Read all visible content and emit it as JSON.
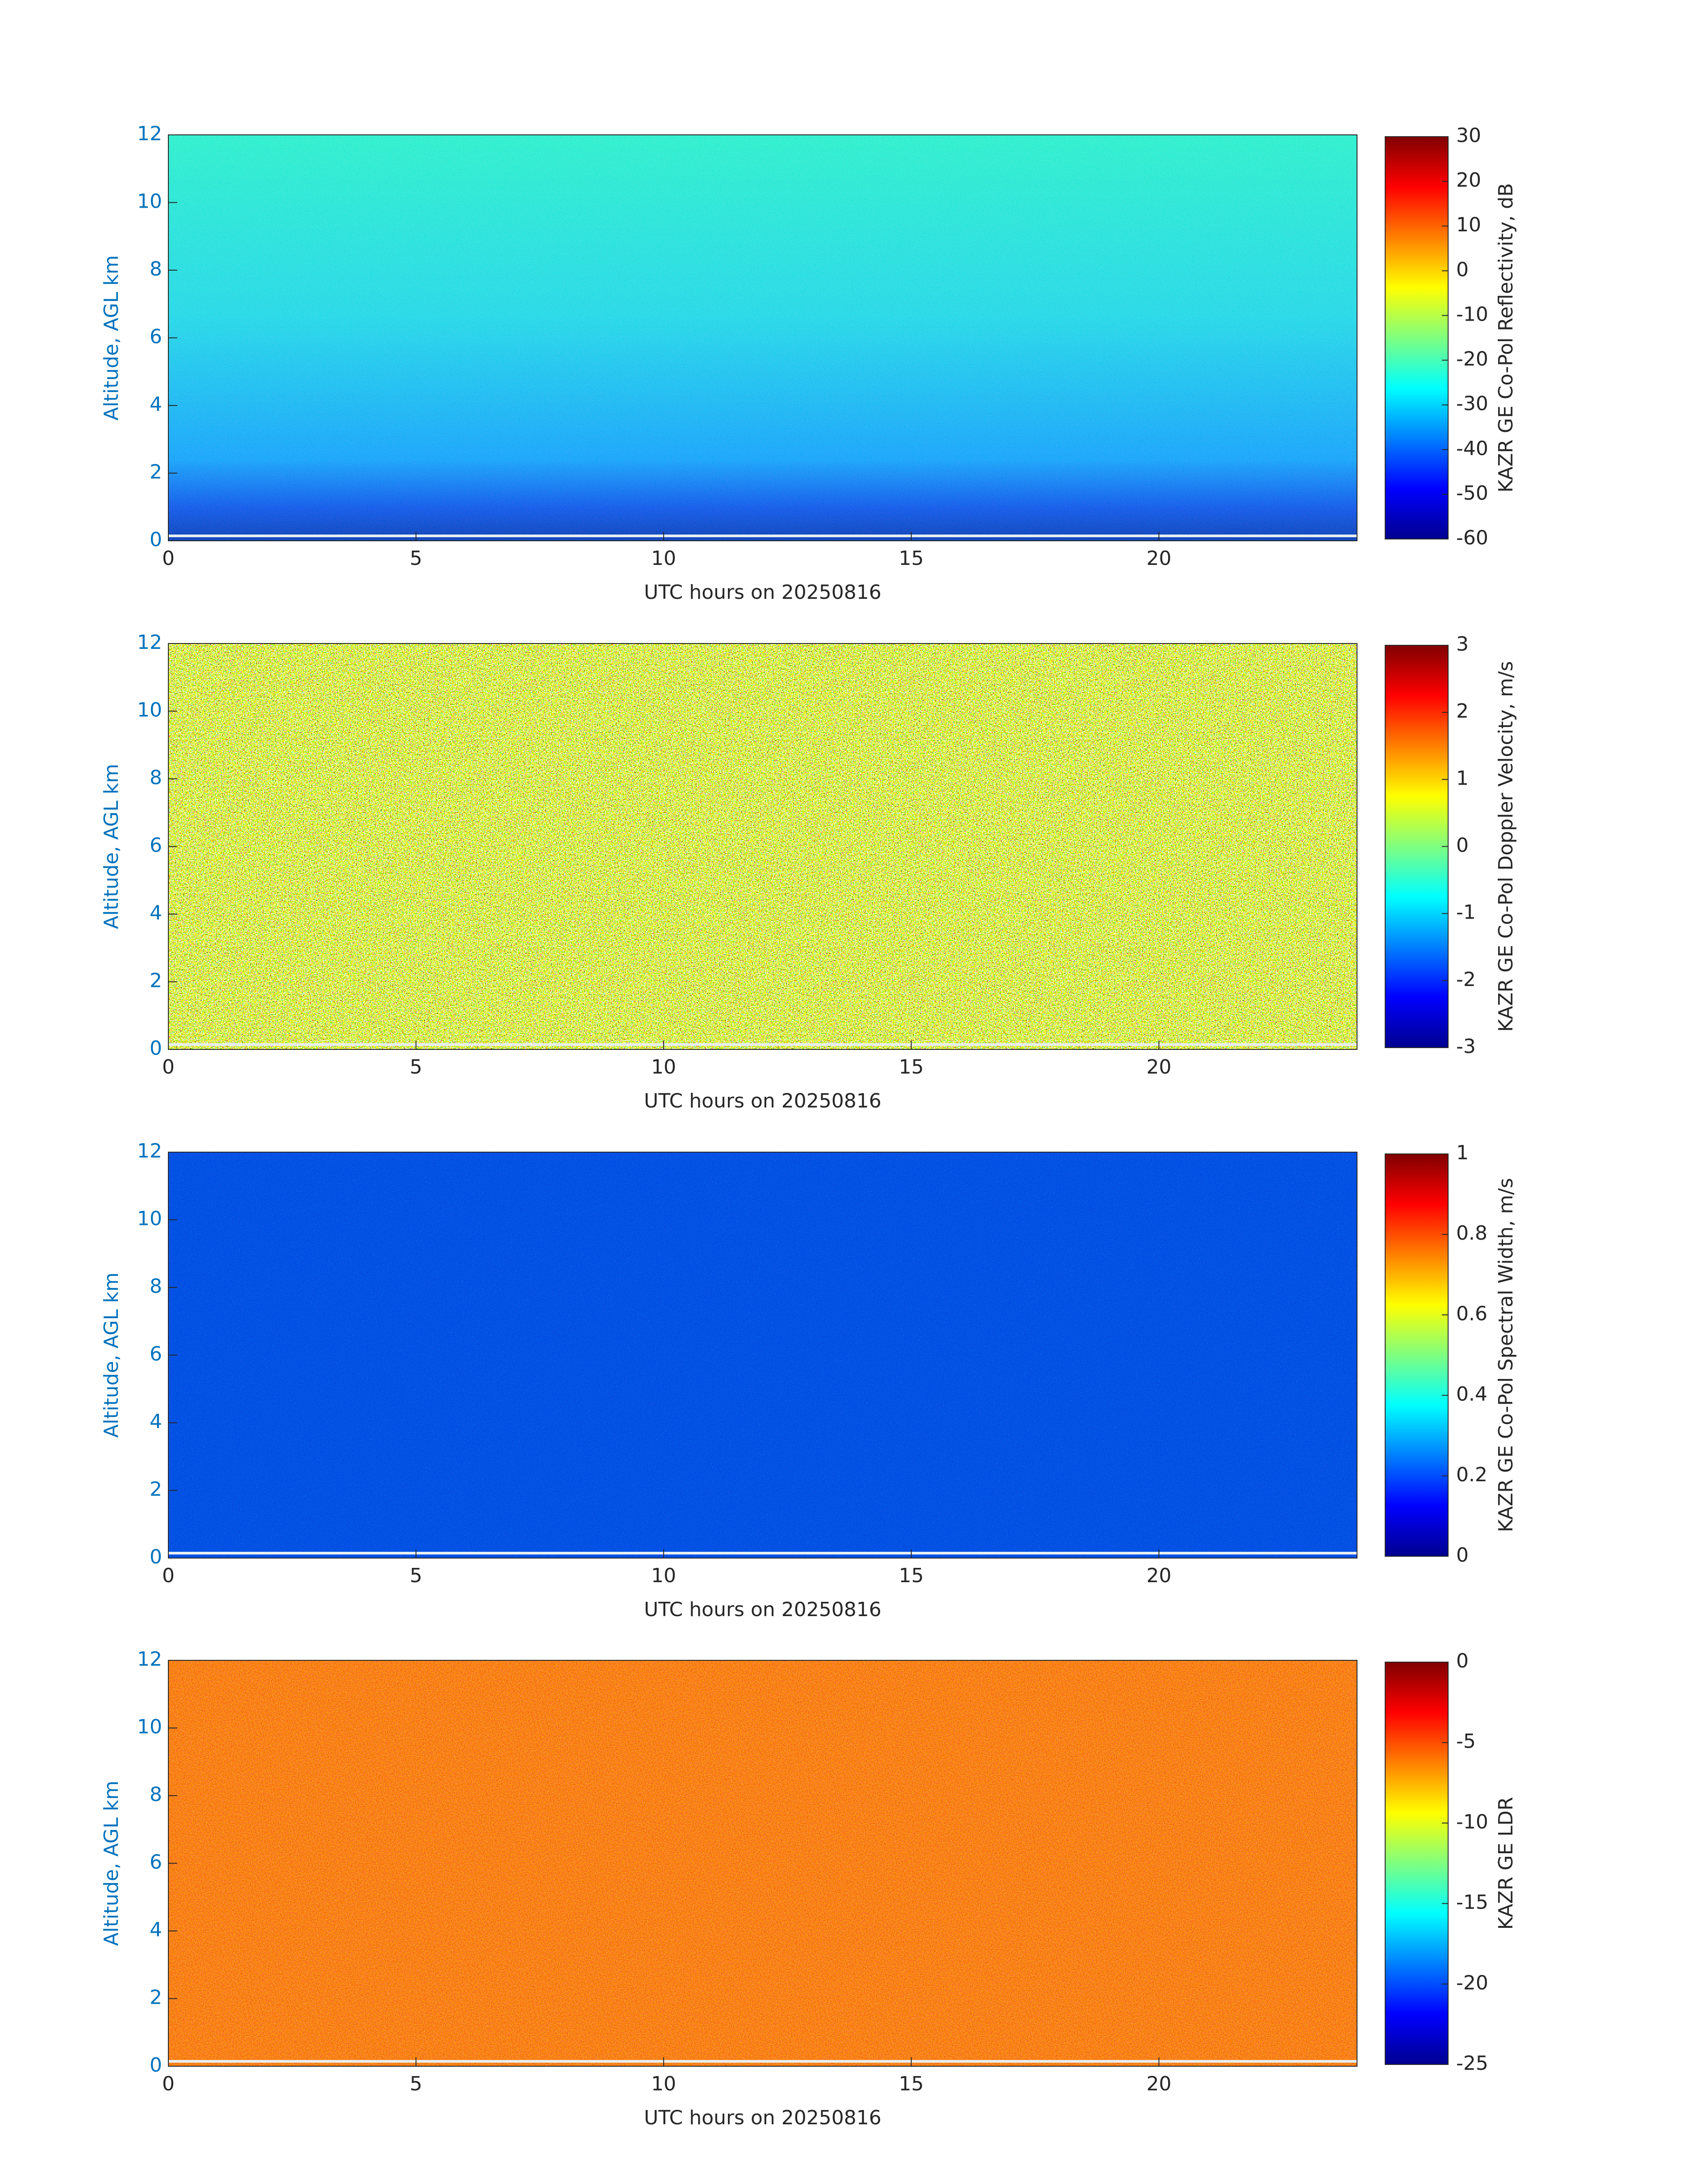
{
  "chart_data": [
    {
      "type": "heatmap",
      "xlabel": "UTC hours on 20250816",
      "ylabel": "Altitude, AGL km",
      "xlim": [
        0,
        24
      ],
      "xticks": [
        0,
        5,
        10,
        15,
        20
      ],
      "ylim": [
        0,
        12
      ],
      "yticks": [
        0,
        2,
        4,
        6,
        8,
        10,
        12
      ],
      "colormap": "jet",
      "colorbar": {
        "label": "KAZR GE Co-Pol Reflectivity, dB",
        "lim": [
          -60,
          30
        ],
        "ticks": [
          -60,
          -50,
          -40,
          -30,
          -20,
          -10,
          0,
          10,
          20,
          30
        ]
      }
    },
    {
      "type": "heatmap",
      "xlabel": "UTC hours on 20250816",
      "ylabel": "Altitude, AGL km",
      "xlim": [
        0,
        24
      ],
      "xticks": [
        0,
        5,
        10,
        15,
        20
      ],
      "ylim": [
        0,
        12
      ],
      "yticks": [
        0,
        2,
        4,
        6,
        8,
        10,
        12
      ],
      "colormap": "jet",
      "colorbar": {
        "label": "KAZR GE Co-Pol Doppler Velocity, m/s",
        "lim": [
          -3,
          3
        ],
        "ticks": [
          -3,
          -2,
          -1,
          0,
          1,
          2,
          3
        ]
      }
    },
    {
      "type": "heatmap",
      "xlabel": "UTC hours on 20250816",
      "ylabel": "Altitude, AGL km",
      "xlim": [
        0,
        24
      ],
      "xticks": [
        0,
        5,
        10,
        15,
        20
      ],
      "ylim": [
        0,
        12
      ],
      "yticks": [
        0,
        2,
        4,
        6,
        8,
        10,
        12
      ],
      "colormap": "jet",
      "colorbar": {
        "label": "KAZR GE Co-Pol Spectral Width, m/s",
        "lim": [
          0,
          1
        ],
        "ticks": [
          0,
          0.2,
          0.4,
          0.6,
          0.8,
          1
        ]
      }
    },
    {
      "type": "heatmap",
      "xlabel": "UTC hours on 20250816",
      "ylabel": "Altitude, AGL km",
      "xlim": [
        0,
        24
      ],
      "xticks": [
        0,
        5,
        10,
        15,
        20
      ],
      "ylim": [
        0,
        12
      ],
      "yticks": [
        0,
        2,
        4,
        6,
        8,
        10,
        12
      ],
      "colormap": "jet",
      "colorbar": {
        "label": "KAZR GE LDR",
        "lim": [
          -25,
          0
        ],
        "ticks": [
          -25,
          -20,
          -15,
          -10,
          -5,
          0
        ]
      }
    }
  ]
}
